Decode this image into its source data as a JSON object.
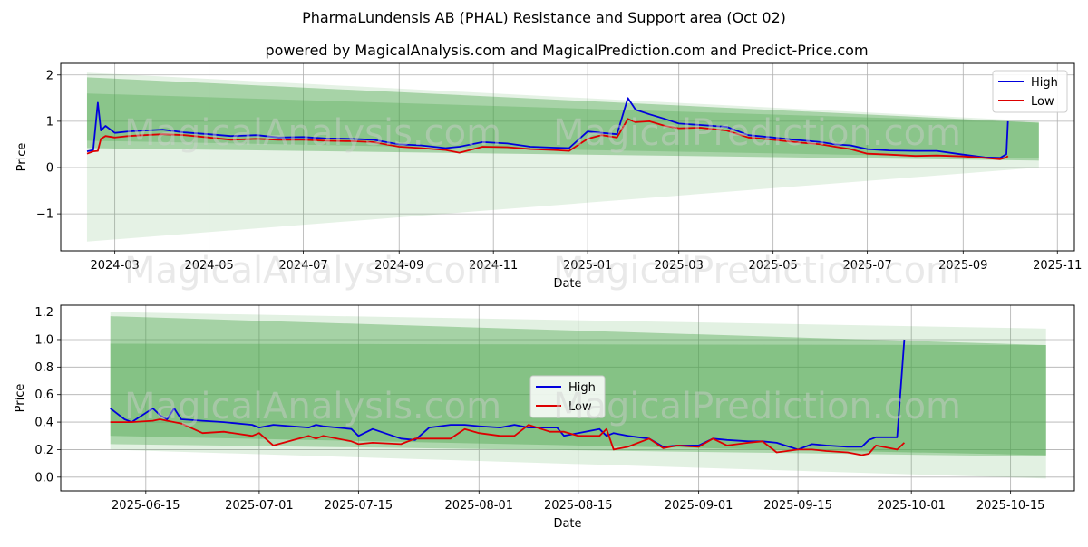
{
  "title": "PharmaLundensis AB (PHAL) Resistance and Support area (Oct 02)",
  "subtitle": "powered by MagicalAnalysis.com and MagicalPrediction.com and Predict-Price.com",
  "watermarks": [
    "MagicalAnalysis.com",
    "MagicalPrediction.com"
  ],
  "colors": {
    "high": "#0000dd",
    "low": "#dd0000",
    "band": "#4aa64a",
    "grid": "#b0b0b0"
  },
  "chart_data": [
    {
      "type": "line",
      "xlabel": "Date",
      "ylabel": "Price",
      "grid": true,
      "legend": "top-right",
      "xlim": [
        "2024-01-26",
        "2025-11-12"
      ],
      "ylim": [
        -1.8,
        2.25
      ],
      "x_ticks": [
        "2024-03",
        "2024-05",
        "2024-07",
        "2024-09",
        "2024-11",
        "2025-01",
        "2025-03",
        "2025-05",
        "2025-07",
        "2025-09",
        "2025-11"
      ],
      "y_ticks": [
        "2",
        "1",
        "0",
        "−1"
      ],
      "y_tick_values": [
        2,
        1,
        0,
        -1
      ],
      "bands": [
        {
          "start": "2024-02-12",
          "end": "2025-10-20",
          "upper": [
            1.95,
            0.97
          ],
          "lower": [
            0.42,
            0.15
          ],
          "opacity": 0.4
        },
        {
          "start": "2024-02-12",
          "end": "2025-10-20",
          "upper": [
            1.6,
            0.97
          ],
          "lower": [
            0.58,
            0.2
          ],
          "opacity": 0.3
        },
        {
          "start": "2024-02-12",
          "end": "2025-10-20",
          "upper": [
            2.05,
            1.0
          ],
          "lower": [
            -1.6,
            0.0
          ],
          "opacity": 0.14
        }
      ],
      "series": [
        {
          "name": "High",
          "color": "#0000dd",
          "x": [
            "2024-02-12",
            "2024-02-16",
            "2024-02-19",
            "2024-02-21",
            "2024-02-24",
            "2024-03-01",
            "2024-03-10",
            "2024-03-20",
            "2024-04-01",
            "2024-04-15",
            "2024-05-01",
            "2024-05-15",
            "2024-06-01",
            "2024-06-15",
            "2024-07-01",
            "2024-07-15",
            "2024-08-01",
            "2024-08-15",
            "2024-09-01",
            "2024-09-15",
            "2024-10-01",
            "2024-10-10",
            "2024-10-25",
            "2024-11-10",
            "2024-11-25",
            "2024-12-10",
            "2024-12-20",
            "2025-01-01",
            "2025-01-10",
            "2025-01-20",
            "2025-01-27",
            "2025-02-01",
            "2025-02-10",
            "2025-02-20",
            "2025-03-01",
            "2025-03-15",
            "2025-04-01",
            "2025-04-15",
            "2025-05-01",
            "2025-05-15",
            "2025-06-01",
            "2025-06-10",
            "2025-06-20",
            "2025-07-01",
            "2025-07-15",
            "2025-08-01",
            "2025-08-15",
            "2025-09-01",
            "2025-09-15",
            "2025-09-25",
            "2025-09-29",
            "2025-09-30"
          ],
          "values": [
            0.35,
            0.38,
            1.4,
            0.8,
            0.9,
            0.75,
            0.78,
            0.8,
            0.82,
            0.76,
            0.72,
            0.68,
            0.7,
            0.65,
            0.66,
            0.63,
            0.62,
            0.6,
            0.5,
            0.48,
            0.42,
            0.45,
            0.55,
            0.52,
            0.45,
            0.43,
            0.42,
            0.78,
            0.75,
            0.72,
            1.5,
            1.25,
            1.15,
            1.05,
            0.95,
            0.92,
            0.88,
            0.7,
            0.65,
            0.6,
            0.55,
            0.5,
            0.48,
            0.4,
            0.37,
            0.36,
            0.36,
            0.28,
            0.22,
            0.21,
            0.29,
            1.0
          ]
        },
        {
          "name": "Low",
          "color": "#dd0000",
          "x": [
            "2024-02-12",
            "2024-02-16",
            "2024-02-19",
            "2024-02-21",
            "2024-02-24",
            "2024-03-01",
            "2024-03-10",
            "2024-03-20",
            "2024-04-01",
            "2024-04-15",
            "2024-05-01",
            "2024-05-15",
            "2024-06-01",
            "2024-06-15",
            "2024-07-01",
            "2024-07-15",
            "2024-08-01",
            "2024-08-15",
            "2024-09-01",
            "2024-09-15",
            "2024-10-01",
            "2024-10-10",
            "2024-10-25",
            "2024-11-10",
            "2024-11-25",
            "2024-12-10",
            "2024-12-20",
            "2025-01-01",
            "2025-01-10",
            "2025-01-20",
            "2025-01-27",
            "2025-02-01",
            "2025-02-10",
            "2025-02-20",
            "2025-03-01",
            "2025-03-15",
            "2025-04-01",
            "2025-04-15",
            "2025-05-01",
            "2025-05-15",
            "2025-06-01",
            "2025-06-10",
            "2025-06-20",
            "2025-07-01",
            "2025-07-15",
            "2025-08-01",
            "2025-08-15",
            "2025-09-01",
            "2025-09-15",
            "2025-09-25",
            "2025-09-29",
            "2025-09-30"
          ],
          "values": [
            0.3,
            0.35,
            0.36,
            0.62,
            0.68,
            0.65,
            0.68,
            0.7,
            0.72,
            0.7,
            0.65,
            0.6,
            0.62,
            0.6,
            0.6,
            0.58,
            0.57,
            0.55,
            0.45,
            0.42,
            0.38,
            0.32,
            0.45,
            0.44,
            0.4,
            0.38,
            0.36,
            0.62,
            0.7,
            0.65,
            1.05,
            0.98,
            1.0,
            0.9,
            0.85,
            0.86,
            0.8,
            0.65,
            0.6,
            0.55,
            0.5,
            0.45,
            0.4,
            0.3,
            0.28,
            0.25,
            0.26,
            0.24,
            0.21,
            0.18,
            0.22,
            0.25
          ]
        }
      ]
    },
    {
      "type": "line",
      "xlabel": "Date",
      "ylabel": "Price",
      "grid": true,
      "legend": "center",
      "xlim": [
        "2025-06-03",
        "2025-10-24"
      ],
      "ylim": [
        -0.1,
        1.25
      ],
      "x_ticks": [
        "2025-06-15",
        "2025-07-01",
        "2025-07-15",
        "2025-08-01",
        "2025-08-15",
        "2025-09-01",
        "2025-09-15",
        "2025-10-01",
        "2025-10-15"
      ],
      "y_ticks": [
        "1.2",
        "1.0",
        "0.8",
        "0.6",
        "0.4",
        "0.2",
        "0.0"
      ],
      "y_tick_values": [
        1.2,
        1.0,
        0.8,
        0.6,
        0.4,
        0.2,
        0.0
      ],
      "bands": [
        {
          "start": "2025-06-10",
          "end": "2025-10-20",
          "upper": [
            1.17,
            0.96
          ],
          "lower": [
            0.3,
            0.16
          ],
          "opacity": 0.4
        },
        {
          "start": "2025-06-10",
          "end": "2025-10-20",
          "upper": [
            0.97,
            0.96
          ],
          "lower": [
            0.24,
            0.15
          ],
          "opacity": 0.35
        },
        {
          "start": "2025-06-10",
          "end": "2025-10-20",
          "upper": [
            1.2,
            1.08
          ],
          "lower": [
            0.2,
            -0.01
          ],
          "opacity": 0.16
        }
      ],
      "series": [
        {
          "name": "High",
          "color": "#0000dd",
          "x": [
            "2025-06-10",
            "2025-06-12",
            "2025-06-13",
            "2025-06-16",
            "2025-06-17",
            "2025-06-18",
            "2025-06-19",
            "2025-06-20",
            "2025-06-23",
            "2025-06-26",
            "2025-06-30",
            "2025-07-01",
            "2025-07-03",
            "2025-07-08",
            "2025-07-09",
            "2025-07-10",
            "2025-07-14",
            "2025-07-15",
            "2025-07-17",
            "2025-07-21",
            "2025-07-23",
            "2025-07-25",
            "2025-07-28",
            "2025-07-30",
            "2025-08-01",
            "2025-08-04",
            "2025-08-05",
            "2025-08-06",
            "2025-08-08",
            "2025-08-11",
            "2025-08-12",
            "2025-08-13",
            "2025-08-15",
            "2025-08-18",
            "2025-08-19",
            "2025-08-20",
            "2025-08-22",
            "2025-08-25",
            "2025-08-27",
            "2025-08-29",
            "2025-09-01",
            "2025-09-03",
            "2025-09-05",
            "2025-09-08",
            "2025-09-10",
            "2025-09-12",
            "2025-09-15",
            "2025-09-17",
            "2025-09-19",
            "2025-09-22",
            "2025-09-24",
            "2025-09-25",
            "2025-09-26",
            "2025-09-29",
            "2025-09-30"
          ],
          "values": [
            0.5,
            0.42,
            0.4,
            0.5,
            0.45,
            0.42,
            0.5,
            0.42,
            0.41,
            0.4,
            0.38,
            0.36,
            0.38,
            0.36,
            0.38,
            0.37,
            0.35,
            0.3,
            0.35,
            0.28,
            0.27,
            0.36,
            0.38,
            0.38,
            0.37,
            0.36,
            0.37,
            0.38,
            0.36,
            0.36,
            0.36,
            0.3,
            0.32,
            0.35,
            0.3,
            0.32,
            0.3,
            0.28,
            0.22,
            0.23,
            0.23,
            0.28,
            0.27,
            0.26,
            0.26,
            0.25,
            0.2,
            0.24,
            0.23,
            0.22,
            0.22,
            0.27,
            0.29,
            0.29,
            1.0
          ]
        },
        {
          "name": "Low",
          "color": "#dd0000",
          "x": [
            "2025-06-10",
            "2025-06-12",
            "2025-06-13",
            "2025-06-16",
            "2025-06-17",
            "2025-06-18",
            "2025-06-19",
            "2025-06-20",
            "2025-06-23",
            "2025-06-26",
            "2025-06-30",
            "2025-07-01",
            "2025-07-03",
            "2025-07-08",
            "2025-07-09",
            "2025-07-10",
            "2025-07-14",
            "2025-07-15",
            "2025-07-17",
            "2025-07-21",
            "2025-07-23",
            "2025-07-25",
            "2025-07-28",
            "2025-07-30",
            "2025-08-01",
            "2025-08-04",
            "2025-08-05",
            "2025-08-06",
            "2025-08-08",
            "2025-08-11",
            "2025-08-12",
            "2025-08-13",
            "2025-08-15",
            "2025-08-18",
            "2025-08-19",
            "2025-08-20",
            "2025-08-22",
            "2025-08-25",
            "2025-08-27",
            "2025-08-29",
            "2025-09-01",
            "2025-09-03",
            "2025-09-05",
            "2025-09-08",
            "2025-09-10",
            "2025-09-12",
            "2025-09-15",
            "2025-09-17",
            "2025-09-19",
            "2025-09-22",
            "2025-09-24",
            "2025-09-25",
            "2025-09-26",
            "2025-09-29",
            "2025-09-30"
          ],
          "values": [
            0.4,
            0.4,
            0.4,
            0.41,
            0.42,
            0.41,
            0.4,
            0.39,
            0.32,
            0.33,
            0.3,
            0.32,
            0.23,
            0.3,
            0.28,
            0.3,
            0.26,
            0.24,
            0.25,
            0.24,
            0.28,
            0.28,
            0.28,
            0.35,
            0.32,
            0.3,
            0.3,
            0.3,
            0.38,
            0.33,
            0.33,
            0.33,
            0.3,
            0.3,
            0.35,
            0.2,
            0.22,
            0.28,
            0.21,
            0.23,
            0.22,
            0.28,
            0.23,
            0.25,
            0.26,
            0.18,
            0.2,
            0.2,
            0.19,
            0.18,
            0.16,
            0.17,
            0.23,
            0.2,
            0.25
          ]
        }
      ]
    }
  ]
}
